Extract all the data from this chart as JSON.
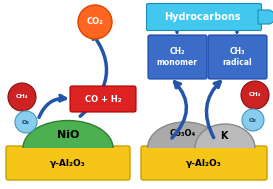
{
  "bg_color": "#ffffff",
  "gold_color": "#F5C518",
  "gold_edge": "#C8A000",
  "green_color": "#4CAF50",
  "green_edge": "#2E7D32",
  "gray1_color": "#AAAAAA",
  "gray2_color": "#BBBBBB",
  "gray_edge": "#888888",
  "blue_dark": "#2255AA",
  "blue_mid": "#3570CC",
  "blue_light": "#42B0E8",
  "hydro_bg": "#42C8EE",
  "hydro_edge": "#2288BB",
  "box_blue": "#3B6CC8",
  "box_blue_edge": "#1A44AA",
  "red_box": "#DD2222",
  "red_box_edge": "#AA0000",
  "co2_orange": "#FF6622",
  "co2_edge": "#DD4400",
  "ch4_color": "#CC2222",
  "ch4_edge": "#881111",
  "o2_color": "#88CCEE",
  "o2_edge": "#4499BB",
  "hydrocarbons_text": "Hydrocarbons",
  "ch2_text": "CH₂\nmonomer",
  "ch3_text": "CH₃\nradical",
  "co2_text": "CO₂",
  "co_h2_text": "CO + H₂",
  "nio_text": "NiO",
  "co3o4_text": "Co₃O₄",
  "k_text": "K",
  "al2o3_left": "γ-Al₂O₃",
  "al2o3_right": "γ-Al₂O₃",
  "ch4_text": "CH₄",
  "o2_text": "O₂"
}
